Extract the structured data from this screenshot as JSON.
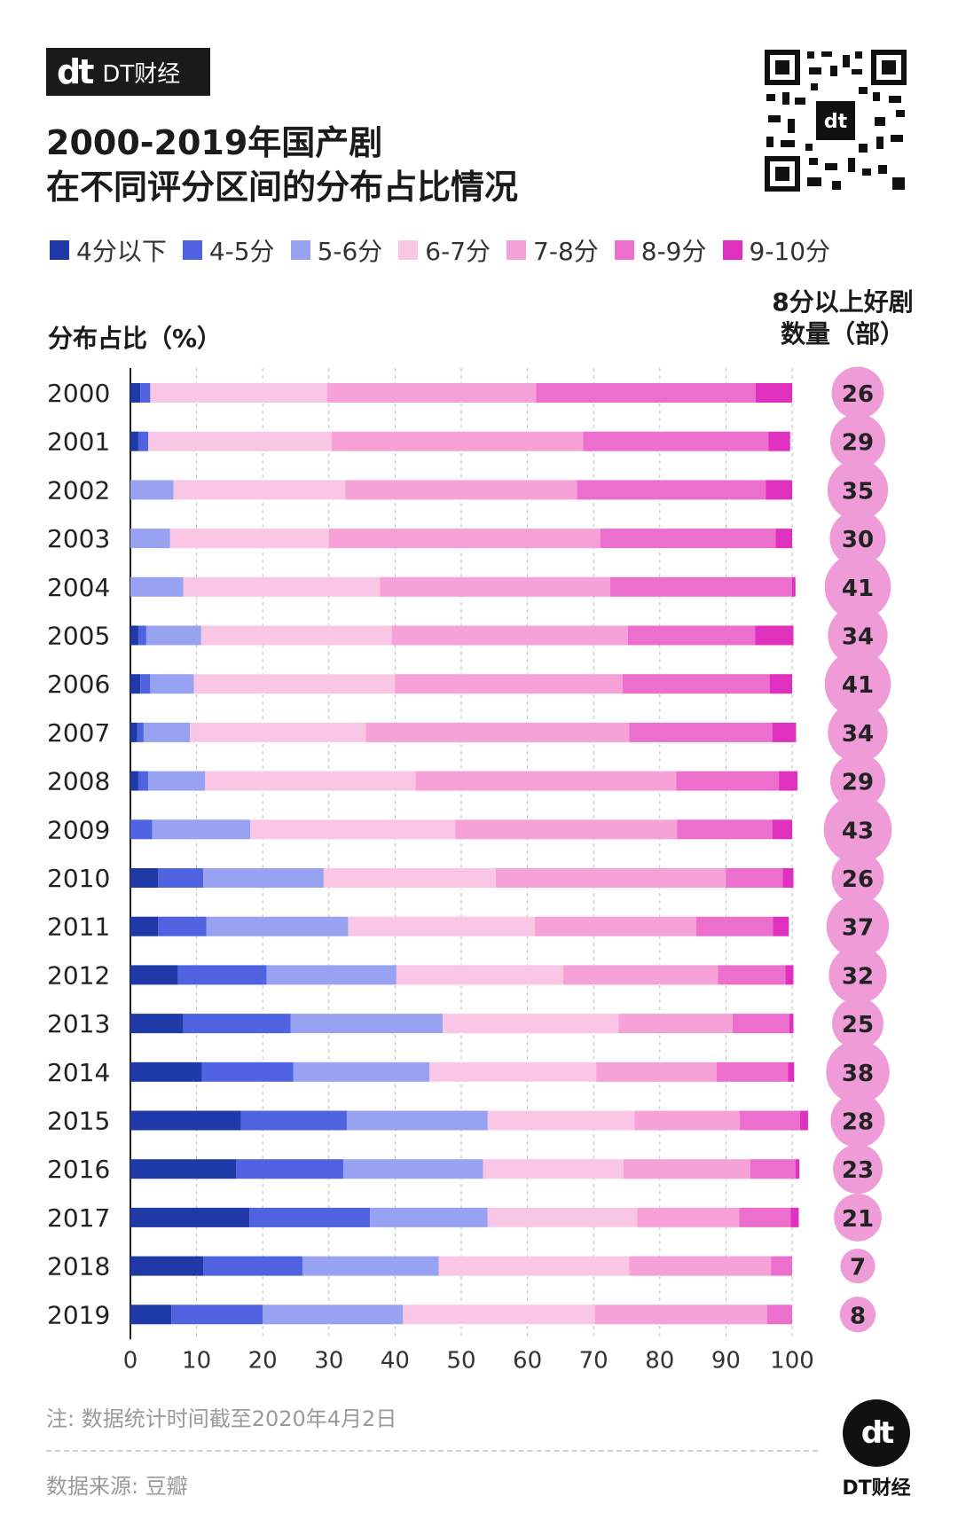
{
  "brand": {
    "mark": "dt",
    "name": "DT财经"
  },
  "title_lines": [
    "2000-2019年国产剧",
    "在不同评分区间的分布占比情况"
  ],
  "colors": [
    "#1f3aa8",
    "#4f63e0",
    "#97a3f2",
    "#f9c6e6",
    "#f6a1d8",
    "#ec6fcd",
    "#e030c0"
  ],
  "right_bubble_color": "#ee9bd8",
  "chart_data": {
    "type": "bar",
    "orientation": "horizontal",
    "stacked": true,
    "ylabel": "分布占比（%）",
    "right_label": [
      "8分以上好剧",
      "数量（部）"
    ],
    "categories": [
      "2000",
      "2001",
      "2002",
      "2003",
      "2004",
      "2005",
      "2006",
      "2007",
      "2008",
      "2009",
      "2010",
      "2011",
      "2012",
      "2013",
      "2014",
      "2015",
      "2016",
      "2017",
      "2018",
      "2019"
    ],
    "xlim": [
      0,
      100
    ],
    "xticks": [
      0,
      10,
      20,
      30,
      40,
      50,
      60,
      70,
      80,
      90,
      100
    ],
    "series": [
      {
        "name": "4分以下",
        "values": [
          1.5,
          1.2,
          0,
          0,
          0,
          1.2,
          1.5,
          1,
          1.2,
          0,
          4.2,
          4.2,
          7.2,
          8,
          10.8,
          16.7,
          16,
          18,
          11,
          6.2
        ]
      },
      {
        "name": "4-5分",
        "values": [
          1.5,
          1.5,
          0,
          0,
          0,
          1.2,
          1.5,
          1,
          1.5,
          3.3,
          6.8,
          7.3,
          13.4,
          16.2,
          13.8,
          16,
          16.2,
          18.2,
          15,
          13.8
        ]
      },
      {
        "name": "5-6分",
        "values": [
          0,
          0,
          6.5,
          6,
          8,
          8.3,
          6.6,
          7,
          8.6,
          14.8,
          18.2,
          21.4,
          19.6,
          23,
          20.6,
          21.3,
          21.1,
          17.8,
          20.6,
          21.2
        ]
      },
      {
        "name": "6-7分",
        "values": [
          26.7,
          27.7,
          26,
          24,
          29.7,
          28.8,
          30.4,
          26.6,
          31.8,
          31,
          26,
          28.2,
          25.2,
          26.6,
          25.2,
          22.2,
          21.2,
          22.6,
          28.8,
          29
        ]
      },
      {
        "name": "7-8分",
        "values": [
          31.6,
          38,
          35,
          41,
          34.8,
          35.7,
          34.4,
          39.8,
          39.4,
          33.5,
          34.8,
          24.4,
          23.4,
          17.2,
          18.2,
          15.9,
          19.2,
          15.4,
          21.4,
          26
        ]
      },
      {
        "name": "8-9分",
        "values": [
          33.2,
          28,
          28.5,
          26.5,
          27.5,
          19.2,
          22.2,
          21.6,
          15.5,
          14.4,
          8.6,
          11.6,
          10.2,
          8.6,
          10.8,
          9.1,
          6.8,
          7.8,
          3.2,
          3.8
        ]
      },
      {
        "name": "9-10分",
        "values": [
          5.5,
          3.3,
          4,
          2.5,
          0.5,
          5.8,
          3.4,
          3.6,
          2.8,
          3,
          1.6,
          2.4,
          1.2,
          0.6,
          0.9,
          1.2,
          0.6,
          1.2,
          0,
          0
        ]
      }
    ],
    "good_drama_counts": [
      26,
      29,
      35,
      30,
      41,
      34,
      41,
      34,
      29,
      43,
      26,
      37,
      32,
      25,
      38,
      28,
      23,
      21,
      7,
      8
    ]
  },
  "note": "注: 数据统计时间截至2020年4月2日",
  "source": "数据来源: 豆瓣"
}
